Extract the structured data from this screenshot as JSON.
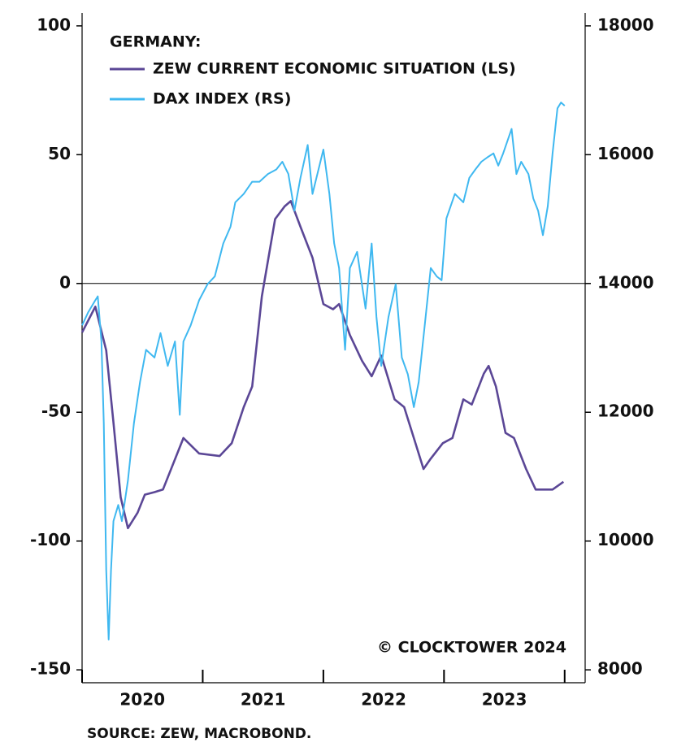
{
  "chart_data": {
    "type": "line",
    "legend_title": "GERMANY:",
    "annotation": "© CLOCKTOWER 2024",
    "source": "SOURCE: ZEW, MACROBOND.",
    "categories": [
      "2020",
      "2021",
      "2022",
      "2023"
    ],
    "xlim": [
      2020,
      2024.17
    ],
    "xticks": [
      2020,
      2021,
      2022,
      2023,
      2024
    ],
    "ylim": [
      -155,
      105
    ],
    "yticks": [
      -150,
      -100,
      -50,
      0,
      50,
      100
    ],
    "y2lim": [
      7800,
      18200
    ],
    "y2ticks": [
      8000,
      10000,
      12000,
      14000,
      16000,
      18000
    ],
    "zero_line": true,
    "legend": "upper left",
    "series": [
      {
        "name": "ZEW CURRENT ECONOMIC SITUATION (LS)",
        "color": "#5b4796",
        "x": [
          2020.0,
          2020.11,
          2020.2,
          2020.26,
          2020.32,
          2020.38,
          2020.46,
          2020.52,
          2020.6,
          2020.67,
          2020.84,
          2020.97,
          2021.14,
          2021.24,
          2021.34,
          2021.41,
          2021.49,
          2021.6,
          2021.68,
          2021.73,
          2021.81,
          2021.91,
          2022.0,
          2022.08,
          2022.13,
          2022.22,
          2022.32,
          2022.4,
          2022.48,
          2022.59,
          2022.67,
          2022.75,
          2022.83,
          2022.89,
          2022.99,
          2023.07,
          2023.16,
          2023.23,
          2023.33,
          2023.37,
          2023.43,
          2023.51,
          2023.58,
          2023.68,
          2023.76,
          2023.9,
          2023.99
        ],
        "values": [
          -19,
          -9,
          -26,
          -54,
          -83,
          -95,
          -89,
          -82,
          -81,
          -80,
          -60,
          -66,
          -67,
          -62,
          -48,
          -40,
          -5,
          25,
          30,
          32,
          22,
          10,
          -8,
          -10,
          -8,
          -20,
          -30,
          -36,
          -28,
          -45,
          -48,
          -60,
          -72,
          -68,
          -62,
          -60,
          -45,
          -47,
          -35,
          -32,
          -40,
          -58,
          -60,
          -72,
          -80,
          -80,
          -77
        ]
      },
      {
        "name": "DAX INDEX (RS)",
        "color": "#3fb8f0",
        "axis": "y2",
        "x": [
          2020.0,
          2020.05,
          2020.11,
          2020.13,
          2020.16,
          2020.18,
          2020.2,
          2020.22,
          2020.24,
          2020.26,
          2020.3,
          2020.33,
          2020.38,
          2020.43,
          2020.48,
          2020.53,
          2020.6,
          2020.65,
          2020.71,
          2020.77,
          2020.81,
          2020.84,
          2020.9,
          2020.97,
          2021.04,
          2021.1,
          2021.17,
          2021.23,
          2021.27,
          2021.34,
          2021.41,
          2021.47,
          2021.54,
          2021.61,
          2021.66,
          2021.71,
          2021.76,
          2021.81,
          2021.87,
          2021.91,
          2021.96,
          2022.0,
          2022.05,
          2022.09,
          2022.13,
          2022.18,
          2022.22,
          2022.28,
          2022.35,
          2022.4,
          2022.44,
          2022.48,
          2022.54,
          2022.6,
          2022.65,
          2022.7,
          2022.75,
          2022.79,
          2022.84,
          2022.89,
          2022.94,
          2022.98,
          2023.02,
          2023.09,
          2023.16,
          2023.21,
          2023.26,
          2023.31,
          2023.36,
          2023.41,
          2023.45,
          2023.49,
          2023.56,
          2023.6,
          2023.64,
          2023.7,
          2023.74,
          2023.78,
          2023.82,
          2023.86,
          2023.9,
          2023.94,
          2023.97,
          2024.0
        ],
        "values": [
          13350,
          13550,
          13740,
          13800,
          13100,
          11830,
          9550,
          8470,
          9550,
          10310,
          10560,
          10310,
          10940,
          11830,
          12470,
          12970,
          12850,
          13230,
          12720,
          13100,
          11960,
          13100,
          13350,
          13740,
          13990,
          14110,
          14620,
          14880,
          15260,
          15390,
          15580,
          15580,
          15700,
          15770,
          15890,
          15700,
          15130,
          15640,
          16150,
          15390,
          15770,
          16080,
          15390,
          14620,
          14240,
          12970,
          14240,
          14490,
          13610,
          14620,
          13480,
          12720,
          13480,
          13990,
          12850,
          12590,
          12080,
          12470,
          13350,
          14240,
          14110,
          14050,
          15010,
          15390,
          15260,
          15640,
          15770,
          15890,
          15960,
          16020,
          15830,
          16020,
          16400,
          15700,
          15890,
          15700,
          15320,
          15130,
          14750,
          15200,
          16020,
          16720,
          16810,
          16760
        ]
      }
    ]
  }
}
